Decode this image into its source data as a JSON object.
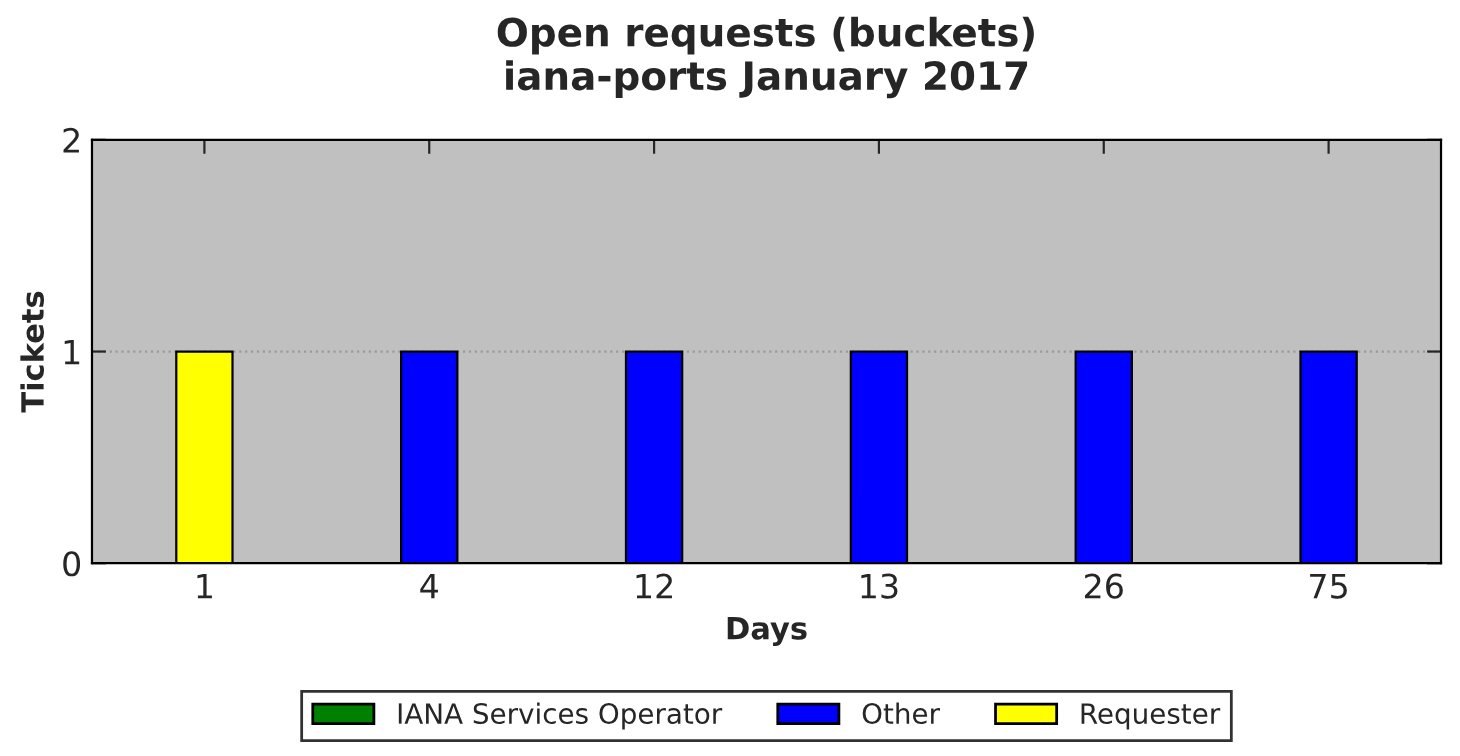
{
  "chart_data": {
    "type": "bar",
    "title": "Open requests (buckets)\niana-ports January 2017",
    "xlabel": "Days",
    "ylabel": "Tickets",
    "categories": [
      "1",
      "4",
      "12",
      "13",
      "26",
      "75"
    ],
    "stacked": true,
    "series": [
      {
        "name": "IANA Services Operator",
        "color": "#008000",
        "values": [
          0,
          0,
          0,
          0,
          0,
          0
        ]
      },
      {
        "name": "Other",
        "color": "#0000ff",
        "values": [
          0,
          1,
          1,
          1,
          1,
          1
        ]
      },
      {
        "name": "Requester",
        "color": "#ffff00",
        "values": [
          1,
          0,
          0,
          0,
          0,
          0
        ]
      }
    ],
    "ylim": [
      0,
      2
    ],
    "yticks": [
      0,
      1,
      2
    ],
    "grid": "y",
    "legend": "bottom"
  }
}
